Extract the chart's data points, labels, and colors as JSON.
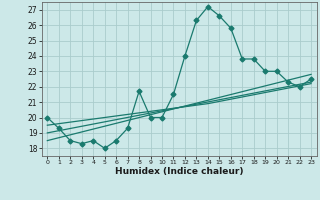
{
  "xlabel": "Humidex (Indice chaleur)",
  "xlim": [
    -0.5,
    23.5
  ],
  "ylim": [
    17.5,
    27.5
  ],
  "xticks": [
    0,
    1,
    2,
    3,
    4,
    5,
    6,
    7,
    8,
    9,
    10,
    11,
    12,
    13,
    14,
    15,
    16,
    17,
    18,
    19,
    20,
    21,
    22,
    23
  ],
  "yticks": [
    18,
    19,
    20,
    21,
    22,
    23,
    24,
    25,
    26,
    27
  ],
  "background_color": "#cce8e8",
  "grid_color": "#aacccc",
  "line_color": "#1a7a6e",
  "line1_x": [
    0,
    1,
    2,
    3,
    4,
    5,
    6,
    7,
    8,
    9,
    10,
    11,
    12,
    13,
    14,
    15,
    16,
    17,
    18,
    19,
    20,
    21,
    22,
    23
  ],
  "line1_y": [
    20.0,
    19.3,
    18.5,
    18.3,
    18.5,
    18.0,
    18.5,
    19.3,
    21.7,
    20.0,
    20.0,
    21.5,
    24.0,
    26.3,
    27.2,
    26.6,
    25.8,
    23.8,
    23.8,
    23.0,
    23.0,
    22.3,
    22.0,
    22.5
  ],
  "line2_x": [
    0,
    23
  ],
  "line2_y": [
    18.5,
    22.8
  ],
  "line3_x": [
    0,
    23
  ],
  "line3_y": [
    19.0,
    22.3
  ],
  "line4_x": [
    0,
    14,
    23
  ],
  "line4_y": [
    19.5,
    20.9,
    22.2
  ],
  "marker": "D",
  "markersize": 2.5,
  "linewidth": 0.9
}
